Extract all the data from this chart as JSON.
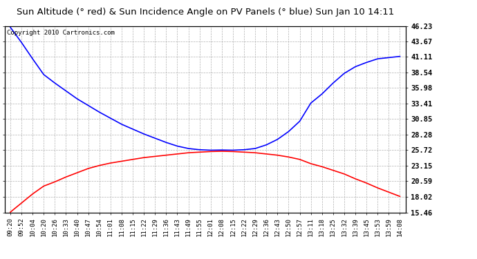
{
  "title": "Sun Altitude (° red) & Sun Incidence Angle on PV Panels (° blue) Sun Jan 10 14:11",
  "copyright_text": "Copyright 2010 Cartronics.com",
  "yticks": [
    15.46,
    18.02,
    20.59,
    23.15,
    25.72,
    28.28,
    30.85,
    33.41,
    35.98,
    38.54,
    41.11,
    43.67,
    46.23
  ],
  "x_labels": [
    "09:20",
    "09:52",
    "10:04",
    "10:20",
    "10:26",
    "10:33",
    "10:40",
    "10:47",
    "10:54",
    "11:01",
    "11:08",
    "11:15",
    "11:22",
    "11:29",
    "11:36",
    "11:43",
    "11:49",
    "11:55",
    "12:01",
    "12:08",
    "12:15",
    "12:22",
    "12:29",
    "12:36",
    "12:43",
    "12:50",
    "12:57",
    "13:11",
    "13:18",
    "13:25",
    "13:32",
    "13:39",
    "13:45",
    "13:53",
    "13:59",
    "14:08"
  ],
  "blue_values": [
    46.0,
    43.5,
    40.8,
    38.2,
    36.8,
    35.5,
    34.2,
    33.1,
    32.0,
    31.0,
    30.0,
    29.2,
    28.4,
    27.7,
    27.0,
    26.4,
    26.0,
    25.8,
    25.72,
    25.75,
    25.72,
    25.8,
    26.0,
    26.6,
    27.5,
    28.8,
    30.5,
    33.5,
    35.0,
    36.8,
    38.4,
    39.5,
    40.2,
    40.8,
    41.0,
    41.2
  ],
  "red_values": [
    15.5,
    17.0,
    18.5,
    19.8,
    20.5,
    21.3,
    22.0,
    22.7,
    23.2,
    23.6,
    23.9,
    24.2,
    24.5,
    24.7,
    24.9,
    25.1,
    25.3,
    25.4,
    25.5,
    25.55,
    25.5,
    25.4,
    25.3,
    25.1,
    24.9,
    24.6,
    24.2,
    23.5,
    23.0,
    22.4,
    21.8,
    21.0,
    20.3,
    19.5,
    18.8,
    18.1
  ],
  "blue_color": "#0000ff",
  "red_color": "#ff0000",
  "bg_color": "#ffffff",
  "grid_color": "#b0b0b0",
  "title_fontsize": 9.5,
  "copyright_fontsize": 6.5,
  "tick_label_fontsize": 6.5,
  "ytick_label_fontsize": 7.5,
  "ymin": 15.46,
  "ymax": 46.23
}
